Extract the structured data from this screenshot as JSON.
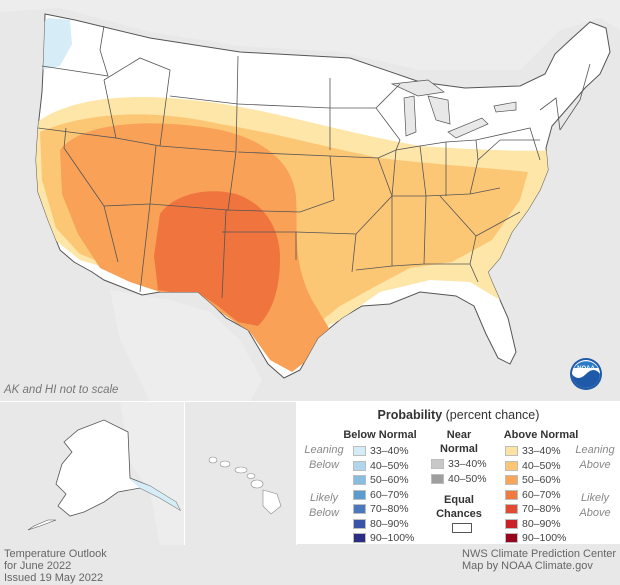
{
  "map": {
    "scale_note": "AK and HI not to scale",
    "logo_text": "NOAA",
    "colors": {
      "land": "#ffffff",
      "outside": "#e8e8e8",
      "borders": "#555555",
      "below_33_40": "#d6ecf6",
      "above_33_40": "#fde6a8",
      "above_40_50": "#fcc775",
      "above_50_60": "#f8a157",
      "above_60_70": "#f0743e"
    }
  },
  "legend": {
    "title_bold": "Probability",
    "title_rest": "(percent chance)",
    "below_header": "Below Normal",
    "near_header": [
      "Near",
      "Normal"
    ],
    "above_header": "Above Normal",
    "equal_chances": [
      "Equal",
      "Chances"
    ],
    "side_labels": {
      "leaning_below": [
        "Leaning",
        "Below"
      ],
      "likely_below": [
        "Likely",
        "Below"
      ],
      "leaning_above": [
        "Leaning",
        "Above"
      ],
      "likely_above": [
        "Likely",
        "Above"
      ]
    },
    "below": [
      {
        "label": "33–40%",
        "color": "#d4ecf7"
      },
      {
        "label": "40–50%",
        "color": "#b1d5eb"
      },
      {
        "label": "50–60%",
        "color": "#86bde0"
      },
      {
        "label": "60–70%",
        "color": "#5a9bd0"
      },
      {
        "label": "70–80%",
        "color": "#4a78bf"
      },
      {
        "label": "80–90%",
        "color": "#3a55a8"
      },
      {
        "label": "90–100%",
        "color": "#2c2e86"
      }
    ],
    "near": [
      {
        "label": "33–40%",
        "color": "#c8c8c8"
      },
      {
        "label": "40–50%",
        "color": "#9e9e9e"
      }
    ],
    "above": [
      {
        "label": "33–40%",
        "color": "#fde3a3"
      },
      {
        "label": "40–50%",
        "color": "#fcc675"
      },
      {
        "label": "50–60%",
        "color": "#f8a45a"
      },
      {
        "label": "60–70%",
        "color": "#f17a40"
      },
      {
        "label": "70–80%",
        "color": "#e24a32"
      },
      {
        "label": "80–90%",
        "color": "#c92028"
      },
      {
        "label": "90–100%",
        "color": "#98061e"
      }
    ]
  },
  "footer": {
    "left": [
      "Temperature Outlook",
      "for June 2022",
      "Issued 19 May 2022"
    ],
    "right": [
      "NWS Climate Prediction Center",
      "Map by NOAA Climate.gov"
    ]
  }
}
